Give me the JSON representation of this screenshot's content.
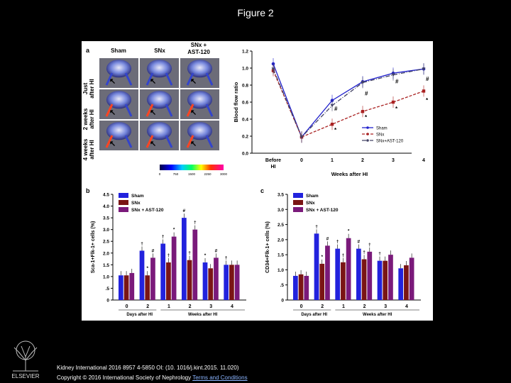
{
  "slide": {
    "title": "Figure 2",
    "citation": "Kidney International 2016 8957 4-5850 OI: (10. 1016/j.kint.2015. 11.020)",
    "copyright": "Copyright © 2016 International Society of Nephrology",
    "terms_link": "Terms and Conditions",
    "publisher_logo": "ELSEVIER"
  },
  "panel_a": {
    "letter": "a",
    "columns": [
      "Sham",
      "SNx",
      "SNx +",
      "AST-120"
    ],
    "rows": [
      [
        "Just",
        "after HI"
      ],
      [
        "2 weeks",
        "after HI"
      ],
      [
        "4 weeks",
        "after HI"
      ]
    ],
    "scale_ticks": [
      "0",
      "750",
      "1500",
      "2250",
      "3000"
    ]
  },
  "chart_data": [
    {
      "type": "line",
      "panel": "a",
      "x": [
        "Before HI",
        "0",
        "1",
        "2",
        "3",
        "4"
      ],
      "xlabel": "Weeks after HI",
      "ylabel": "Blood flow ratio",
      "ylim": [
        0.0,
        1.2
      ],
      "yticks": [
        "0.0",
        "0.2",
        "0.4",
        "0.6",
        "0.8",
        "1.0",
        "1.2"
      ],
      "series": [
        {
          "name": "Sham",
          "color": "#2222cc",
          "values": [
            1.05,
            0.19,
            0.62,
            0.84,
            0.94,
            0.99
          ]
        },
        {
          "name": "SNx",
          "color": "#aa2222",
          "values": [
            0.97,
            0.19,
            0.34,
            0.49,
            0.6,
            0.73
          ]
        },
        {
          "name": "SNx+AST-120",
          "color": "#444466",
          "values": [
            0.99,
            0.19,
            0.56,
            0.83,
            0.92,
            0.99
          ]
        }
      ],
      "annotations": [
        "#",
        "#",
        "#",
        "#",
        "*",
        "*",
        "*",
        "*"
      ]
    },
    {
      "type": "bar",
      "panel": "b",
      "categories": [
        "0",
        "2",
        "1",
        "2",
        "3",
        "4"
      ],
      "group_labels": [
        "Days after HI",
        "Weeks after HI"
      ],
      "ylabel": "Sca-1+Flk-1+ cells (%)",
      "ylim": [
        0,
        4.5
      ],
      "yticks": [
        "0",
        ".5",
        "1.0",
        "1.5",
        "2.0",
        "2.5",
        "3.0",
        "3.5",
        "4.0",
        "4.5"
      ],
      "series": [
        {
          "name": "Sham",
          "color": "#2222dd",
          "values": [
            1.05,
            2.1,
            2.4,
            3.5,
            1.6,
            1.5
          ]
        },
        {
          "name": "SNx",
          "color": "#7a1515",
          "values": [
            1.05,
            1.05,
            1.6,
            1.7,
            1.35,
            1.5
          ]
        },
        {
          "name": "SNx + AST-120",
          "color": "#7a1a7a",
          "values": [
            1.15,
            1.8,
            2.7,
            3.0,
            1.8,
            1.5
          ]
        }
      ],
      "annotations": [
        "†",
        "*",
        "#",
        "†",
        "†",
        "*",
        "#",
        "†",
        "†",
        "*",
        "#",
        "†"
      ]
    },
    {
      "type": "bar",
      "panel": "c",
      "categories": [
        "0",
        "2",
        "1",
        "2",
        "3",
        "4"
      ],
      "group_labels": [
        "Days after HI",
        "Weeks after HI"
      ],
      "ylabel": "CD34+Flk-1+ cells (%)",
      "ylim": [
        0,
        3.5
      ],
      "yticks": [
        "0",
        ".5",
        "1.0",
        "1.5",
        "2.0",
        "2.5",
        "3.0",
        "3.5"
      ],
      "series": [
        {
          "name": "Sham",
          "color": "#2222dd",
          "values": [
            0.8,
            2.2,
            1.7,
            1.7,
            1.3,
            1.05
          ]
        },
        {
          "name": "SNx",
          "color": "#7a1515",
          "values": [
            0.85,
            1.2,
            1.25,
            1.35,
            1.3,
            1.15
          ]
        },
        {
          "name": "SNx + AST-120",
          "color": "#7a1a7a",
          "values": [
            0.8,
            1.8,
            2.05,
            1.6,
            1.5,
            1.4
          ]
        }
      ],
      "annotations": [
        "†",
        "*",
        "#",
        "†",
        "†",
        "*",
        "#",
        "†",
        "†",
        "†"
      ]
    }
  ]
}
